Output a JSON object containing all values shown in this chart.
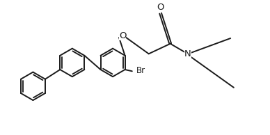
{
  "bg_color": "#ffffff",
  "line_color": "#1a1a1a",
  "line_width": 1.4,
  "font_size_label": 9.5,
  "font_size_br": 8.5,
  "figsize": [
    3.88,
    1.94
  ],
  "dpi": 100,
  "xlim": [
    -3.6,
    2.8
  ],
  "ylim": [
    -1.8,
    1.5
  ]
}
